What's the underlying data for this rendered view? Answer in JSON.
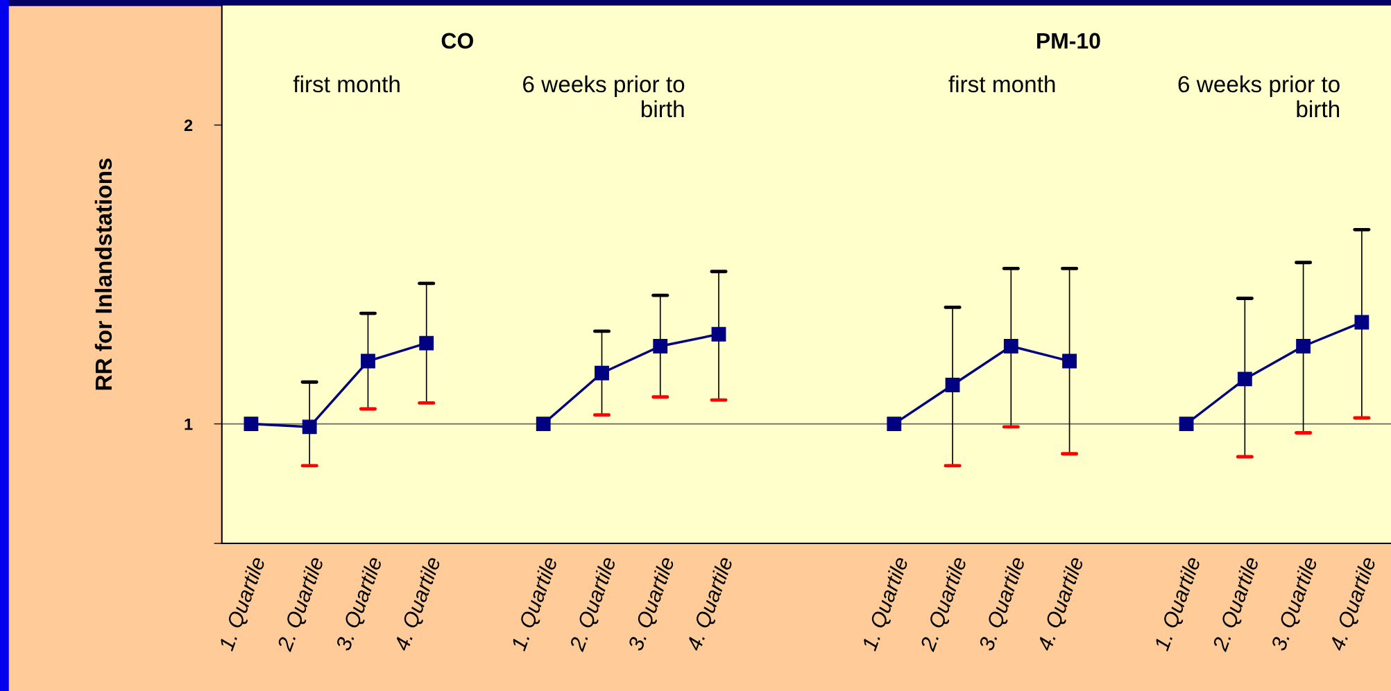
{
  "chart_data": {
    "type": "line",
    "ylabel": "RR for Inlandstations",
    "annotations": [
      "CO",
      "first month",
      "6 weeks prior to\nbirth",
      "PM-10",
      "first month",
      "6 weeks prior to\nbirth"
    ],
    "categories": [
      "1. Quartile",
      "2. Quartile",
      "3. Quartile",
      "4. Quartile",
      null,
      "1. Quartile",
      "2. Quartile",
      "3. Quartile",
      "4. Quartile",
      null,
      null,
      "1. Quartile",
      "2. Quartile",
      "3. Quartile",
      "4. Quartile",
      null,
      "1. Quartile",
      "2. Quartile",
      "3. Quartile",
      "4. Quartile"
    ],
    "series": [
      {
        "color": "#000080",
        "values": [
          1.0,
          0.99,
          1.21,
          1.27,
          null,
          1.0,
          1.17,
          1.26,
          1.3,
          null,
          null,
          1.0,
          1.13,
          1.26,
          1.21,
          null,
          1.0,
          1.15,
          1.26,
          1.34
        ],
        "errors": [
          null,
          [
            0.86,
            1.14
          ],
          [
            1.05,
            1.37
          ],
          [
            1.07,
            1.47
          ],
          null,
          null,
          [
            1.03,
            1.31
          ],
          [
            1.09,
            1.43
          ],
          [
            1.08,
            1.51
          ],
          null,
          null,
          null,
          [
            0.86,
            1.39
          ],
          [
            0.99,
            1.52
          ],
          [
            0.9,
            1.52
          ],
          null,
          null,
          [
            0.89,
            1.42
          ],
          [
            0.97,
            1.54
          ],
          [
            1.02,
            1.65
          ]
        ]
      }
    ],
    "ylim": [
      0.6,
      2.4
    ],
    "yticks": [
      {
        "value": 0.6,
        "label": null
      },
      1,
      2
    ],
    "ref_lines": [
      {
        "axis": "y",
        "value": 1,
        "color": "#666666"
      }
    ],
    "marker": "square",
    "line_style": "solid",
    "grid": false
  }
}
